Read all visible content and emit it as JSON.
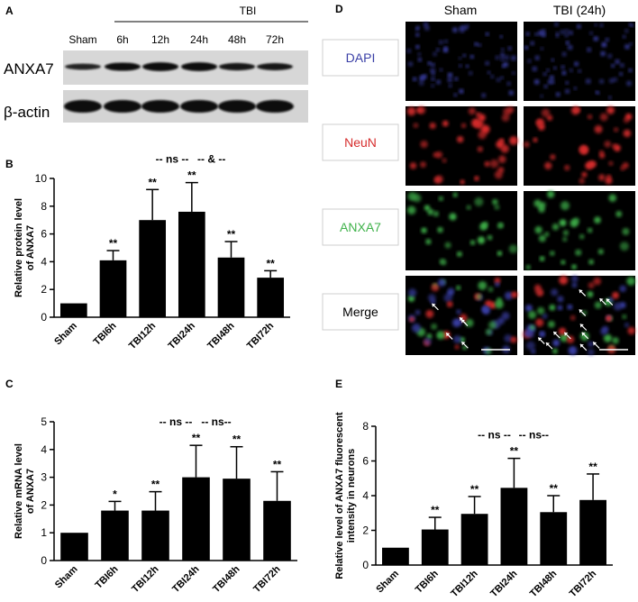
{
  "colors": {
    "bar": "#000000",
    "dapi": "#3a3fa6",
    "neun": "#d62c2c",
    "anxa7": "#3fb24a",
    "tile_bg": "#000000"
  },
  "panel_a": {
    "letter": "A",
    "group_label": "TBI",
    "lanes": [
      "Sham",
      "6h",
      "12h",
      "24h",
      "48h",
      "72h"
    ],
    "rows": [
      "ANXA7",
      "β-actin"
    ],
    "anxa7_band_intensity": [
      0.45,
      0.85,
      0.95,
      0.95,
      0.7,
      0.65
    ],
    "actin_band_intensity": [
      0.95,
      0.95,
      0.95,
      0.95,
      0.95,
      0.95
    ]
  },
  "panel_d": {
    "letter": "D",
    "columns": [
      "Sham",
      "TBI (24h)"
    ],
    "rows": [
      "DAPI",
      "NeuN",
      "ANXA7",
      "Merge"
    ]
  },
  "chart_data": [
    {
      "id": "B",
      "letter": "B",
      "type": "bar",
      "categories": [
        "Sham",
        "TBI6h",
        "TBI12h",
        "TBI24h",
        "TBI48h",
        "TBI72h"
      ],
      "values": [
        1.0,
        4.1,
        7.0,
        7.6,
        4.3,
        2.85
      ],
      "errors": [
        0,
        0.7,
        2.2,
        2.1,
        1.15,
        0.5
      ],
      "sig": [
        "",
        "**",
        "**",
        "**",
        "**",
        "**"
      ],
      "comparisons": [
        {
          "label": "-- ns --",
          "from": 2,
          "to": 3
        },
        {
          "label": "-- & --",
          "from": 3,
          "to": 4
        }
      ],
      "ylabel_line1": "Relative protein level",
      "ylabel_line2": "of ANXA7",
      "ylim": [
        0,
        10
      ],
      "yticks": [
        "0",
        "2",
        "4",
        "6",
        "8",
        "10"
      ]
    },
    {
      "id": "C",
      "letter": "C",
      "type": "bar",
      "categories": [
        "Sham",
        "TBI6h",
        "TBI12h",
        "TBI24h",
        "TBI48h",
        "TBI72h"
      ],
      "values": [
        1.0,
        1.8,
        1.8,
        3.0,
        2.95,
        2.15
      ],
      "errors": [
        0,
        0.33,
        0.68,
        1.15,
        1.15,
        1.05
      ],
      "sig": [
        "",
        "*",
        "**",
        "**",
        "**",
        "**"
      ],
      "comparisons": [
        {
          "label": "-- ns --",
          "from": 2,
          "to": 3
        },
        {
          "label": "-- ns--",
          "from": 3,
          "to": 4
        }
      ],
      "ylabel_line1": "Relative mRNA level",
      "ylabel_line2": "of ANXA7",
      "ylim": [
        0,
        5
      ],
      "yticks": [
        "0",
        "1",
        "2",
        "3",
        "4",
        "5"
      ]
    },
    {
      "id": "E",
      "letter": "E",
      "type": "bar",
      "categories": [
        "Sham",
        "TBI6h",
        "TBI12h",
        "TBI24h",
        "TBI48h",
        "TBI72h"
      ],
      "values": [
        1.0,
        2.05,
        2.95,
        4.45,
        3.05,
        3.75
      ],
      "errors": [
        0,
        0.7,
        1.0,
        1.7,
        0.95,
        1.5
      ],
      "sig": [
        "",
        "**",
        "**",
        "**",
        "**",
        "**"
      ],
      "comparisons": [
        {
          "label": "-- ns --",
          "from": 2,
          "to": 3
        },
        {
          "label": "-- ns--",
          "from": 3,
          "to": 4
        }
      ],
      "ylabel_line1": "Relative level of ANXA7 fluorescent",
      "ylabel_line2": "intensity in neurons",
      "ylim": [
        0,
        8
      ],
      "yticks": [
        "0",
        "2",
        "4",
        "6",
        "8"
      ]
    }
  ]
}
